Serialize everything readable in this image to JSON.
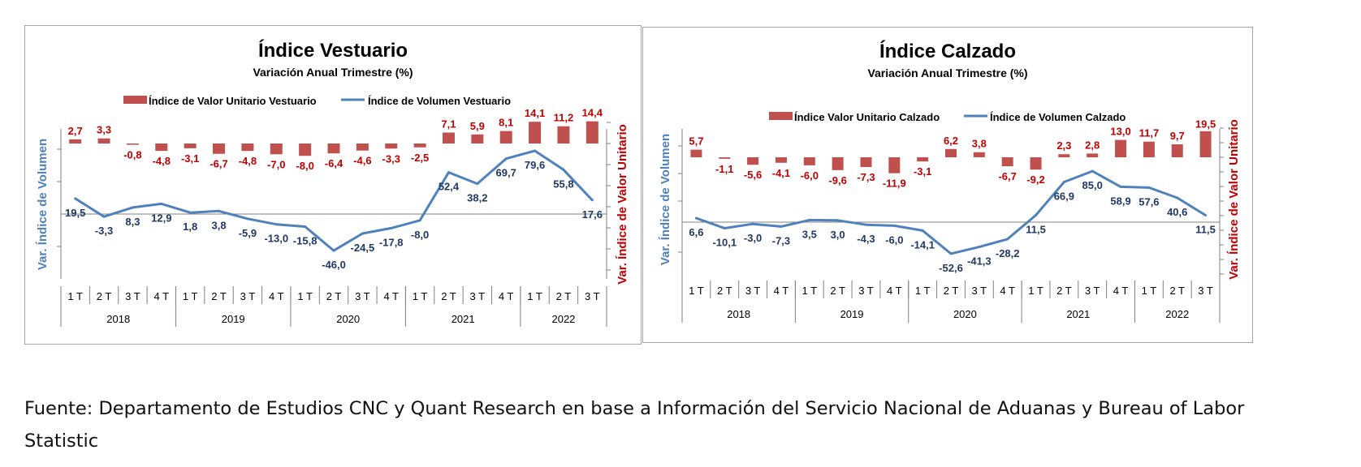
{
  "colors": {
    "bar": "#c0504d",
    "line": "#4f81bd",
    "bar_label": "#c00000",
    "line_label": "#1f3864",
    "axis": "#808080"
  },
  "source_note": "Fuente: Departamento de Estudios CNC y Quant Research en base a Información del Servicio Nacional de Aduanas y Bureau of Labor Statistic",
  "chart_data": [
    {
      "type": "bar+line",
      "title": "Índice Vestuario",
      "subtitle": "Variación Anual Trimestre  (%)",
      "ylabel_left": "Var. Índice de Volumen",
      "ylabel_right": "Var. Índice de Valor Unitario",
      "legend_position": "top",
      "categories": [
        "1 T",
        "2 T",
        "3 T",
        "4 T",
        "1 T",
        "2 T",
        "3 T",
        "4 T",
        "1 T",
        "2 T",
        "3 T",
        "4 T",
        "1 T",
        "2 T",
        "3 T",
        "4 T",
        "1 T",
        "2 T",
        "3 T"
      ],
      "years": [
        {
          "label": "2018",
          "count": 4
        },
        {
          "label": "2019",
          "count": 4
        },
        {
          "label": "2020",
          "count": 4
        },
        {
          "label": "2021",
          "count": 4
        },
        {
          "label": "2022",
          "count": 3
        }
      ],
      "series": [
        {
          "name": "Índice de Valor Unitario Vestuario",
          "kind": "bar",
          "axis": "right",
          "values": [
            2.7,
            3.3,
            -0.8,
            -4.8,
            -3.1,
            -6.7,
            -4.8,
            -7.0,
            -8.0,
            -6.4,
            -4.6,
            -3.3,
            -2.5,
            7.1,
            5.9,
            8.1,
            14.1,
            11.2,
            14.4
          ],
          "labels": [
            "2,7",
            "3,3",
            "-0,8",
            "-4,8",
            "-3,1",
            "-6,7",
            "-4,8",
            "-7,0",
            "-8,0",
            "-6,4",
            "-4,6",
            "-3,3",
            "-2,5",
            "7,1",
            "5,9",
            "8,1",
            "14,1",
            "11,2",
            "14,4"
          ]
        },
        {
          "name": "Índice de Volumen Vestuario",
          "kind": "line",
          "axis": "left",
          "values": [
            19.5,
            -3.3,
            8.3,
            12.9,
            1.8,
            3.8,
            -5.9,
            -13.0,
            -15.8,
            -46.0,
            -24.5,
            -17.8,
            -8.0,
            52.4,
            38.2,
            69.7,
            79.6,
            55.8,
            17.6
          ],
          "labels": [
            "19,5",
            "-3,3",
            "8,3",
            "12,9",
            "1,8",
            "3,8",
            "-5,9",
            "-13,0",
            "-15,8",
            "-46,0",
            "-24,5",
            "-17,8",
            "-8,0",
            "52,4",
            "38,2",
            "69,7",
            "79,6",
            "55,8",
            "17,6"
          ]
        }
      ]
    },
    {
      "type": "bar+line",
      "title": "Índice Calzado",
      "subtitle": "Variación Anual Trimestre  (%)",
      "ylabel_left": "Var. Índice de Volumen",
      "ylabel_right": "Var. Índice de Valor Unitario",
      "legend_position": "top",
      "categories": [
        "1 T",
        "2 T",
        "3 T",
        "4 T",
        "1 T",
        "2 T",
        "3 T",
        "4 T",
        "1 T",
        "2 T",
        "3 T",
        "4 T",
        "1 T",
        "2 T",
        "3 T",
        "4 T",
        "1 T",
        "2 T",
        "3 T"
      ],
      "years": [
        {
          "label": "2018",
          "count": 4
        },
        {
          "label": "2019",
          "count": 4
        },
        {
          "label": "2020",
          "count": 4
        },
        {
          "label": "2021",
          "count": 4
        },
        {
          "label": "2022",
          "count": 3
        }
      ],
      "series": [
        {
          "name": "Índice Valor Unitario Calzado",
          "kind": "bar",
          "axis": "right",
          "values": [
            5.7,
            -1.1,
            -5.6,
            -4.1,
            -6.0,
            -9.6,
            -7.3,
            -11.9,
            -3.1,
            6.2,
            3.8,
            -6.7,
            -9.2,
            2.3,
            2.8,
            13.0,
            11.7,
            9.7,
            19.5
          ],
          "labels": [
            "5,7",
            "-1,1",
            "-5,6",
            "-4,1",
            "-6,0",
            "-9,6",
            "-7,3",
            "-11,9",
            "-3,1",
            "6,2",
            "3,8",
            "-6,7",
            "-9,2",
            "2,3",
            "2,8",
            "13,0",
            "11,7",
            "9,7",
            "19,5"
          ]
        },
        {
          "name": "Índice de Volumen Calzado",
          "kind": "line",
          "axis": "left",
          "values": [
            6.6,
            -10.1,
            -3.0,
            -7.3,
            3.5,
            3.0,
            -4.3,
            -6.0,
            -14.1,
            -52.6,
            -41.3,
            -28.2,
            11.5,
            66.9,
            85.0,
            58.9,
            57.6,
            40.6,
            11.5
          ],
          "labels": [
            "6,6",
            "-10,1",
            "-3,0",
            "-7,3",
            "3,5",
            "3,0",
            "-4,3",
            "-6,0",
            "-14,1",
            "-52,6",
            "-41,3",
            "-28,2",
            "11,5",
            "66,9",
            "85,0",
            "58,9",
            "57,6",
            "40,6",
            "11,5"
          ]
        }
      ]
    }
  ]
}
